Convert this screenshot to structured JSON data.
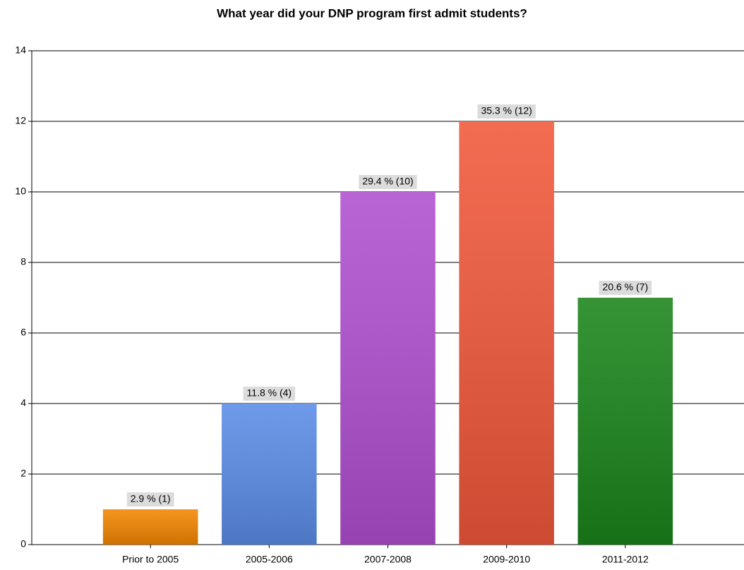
{
  "chart_data": {
    "type": "bar",
    "title": "What year did your DNP program first admit students?",
    "categories": [
      "Prior to 2005",
      "2005-2006",
      "2007-2008",
      "2009-2010",
      "2011-2012"
    ],
    "values": [
      1,
      4,
      10,
      12,
      7
    ],
    "value_labels": [
      "2.9 % (1)",
      "11.8 % (4)",
      "29.4 % (10)",
      "35.3 % (12)",
      "20.6 % (7)"
    ],
    "colors": [
      "#f28500",
      "#5a8ce6",
      "#b04fd0",
      "#f0583a",
      "#1a841a"
    ],
    "ylim": [
      0,
      14
    ],
    "yticks": [
      0,
      2,
      4,
      6,
      8,
      10,
      12,
      14
    ],
    "grid": true
  }
}
